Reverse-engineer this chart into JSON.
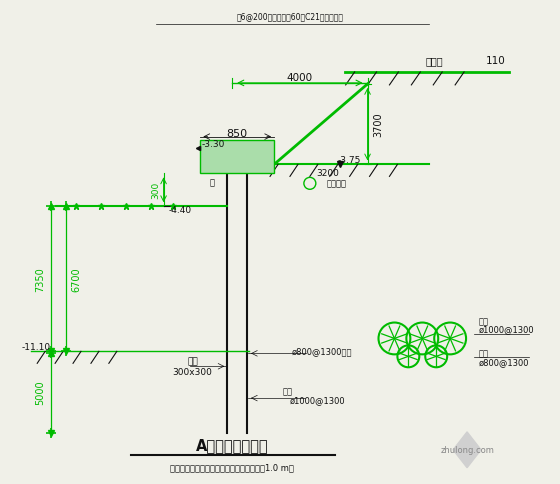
{
  "bg_color": "#f0f0e8",
  "green": "#00bb00",
  "black": "#111111",
  "title": "A区基坑支护剖面",
  "subtitle": "注：止水桩桩端宜进砂卵石层或入较硬土层1.0 m。",
  "top_note": "钢6@200梁钢筋，钢60跨C21磨石垫层面",
  "dim_4000": "4000",
  "dim_850": "850",
  "dim_3700": "3700",
  "dim_300": "300",
  "dim_7350": "7350",
  "dim_6700": "6700",
  "dim_5000": "5000",
  "dim_3200": "3200",
  "elev_m330": "-3.30",
  "elev_m440": "-4.40",
  "elev_m375": "-3.75",
  "elev_m1110": "-11.10",
  "label_300x300": "300x300",
  "label_jiegou": "结构",
  "label_800front": "ø800@1300前排",
  "label_1000": "ø1000@1300",
  "label_zhuliang": "主桩",
  "label_mao1000_line1": "钢桩",
  "label_mao1000_line2": "ø1000@1300",
  "label_mao800_line1": "止桩",
  "label_mao800_line2": "ø800@1300",
  "label_road": "笔架路",
  "label_110": "110",
  "label_road_surface": "现有路面",
  "label_liang": "梁",
  "watermark": "zhulong.com"
}
